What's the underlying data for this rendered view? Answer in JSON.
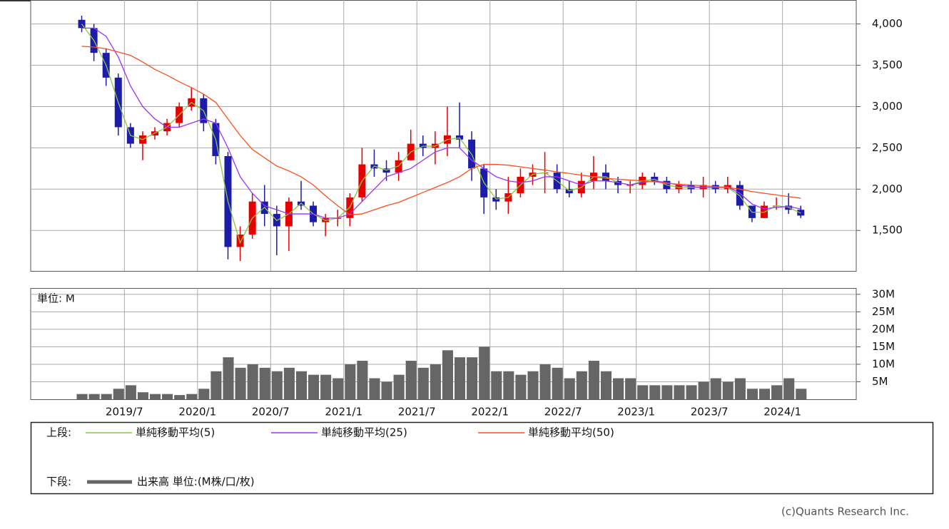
{
  "chart_data": [
    {
      "type": "candlestick",
      "legend_label": "上段:",
      "x": [
        "2019/3",
        "2019/4",
        "2019/5",
        "2019/6",
        "2019/7",
        "2019/8",
        "2019/9",
        "2019/10",
        "2019/11",
        "2019/12",
        "2020/1",
        "2020/2",
        "2020/3",
        "2020/4",
        "2020/5",
        "2020/6",
        "2020/7",
        "2020/8",
        "2020/9",
        "2020/10",
        "2020/11",
        "2020/12",
        "2021/1",
        "2021/2",
        "2021/3",
        "2021/4",
        "2021/5",
        "2021/6",
        "2021/7",
        "2021/8",
        "2021/9",
        "2021/10",
        "2021/11",
        "2021/12",
        "2022/1",
        "2022/2",
        "2022/3",
        "2022/4",
        "2022/5",
        "2022/6",
        "2022/7",
        "2022/8",
        "2022/9",
        "2022/10",
        "2022/11",
        "2022/12",
        "2023/1",
        "2023/2",
        "2023/3",
        "2023/4",
        "2023/5",
        "2023/6",
        "2023/7",
        "2023/8",
        "2023/9",
        "2023/10",
        "2023/11",
        "2023/12",
        "2024/1",
        "2024/2"
      ],
      "open": [
        4050,
        3950,
        3650,
        3350,
        2750,
        2550,
        2650,
        2700,
        2800,
        3000,
        3100,
        2800,
        2400,
        1300,
        1450,
        1850,
        1700,
        1550,
        1850,
        1800,
        1600,
        1650,
        1650,
        1900,
        2300,
        2250,
        2200,
        2350,
        2550,
        2500,
        2550,
        2650,
        2600,
        2250,
        1900,
        1850,
        1950,
        2150,
        2200,
        2200,
        2000,
        1950,
        2100,
        2200,
        2100,
        2050,
        2050,
        2150,
        2100,
        2000,
        2050,
        2000,
        2050,
        2000,
        2050,
        1800,
        1650,
        1800,
        1800,
        1750
      ],
      "high": [
        4100,
        4000,
        3700,
        3400,
        2800,
        2700,
        2750,
        2850,
        3050,
        3230,
        3150,
        2850,
        2450,
        1550,
        1950,
        2050,
        1800,
        1900,
        2100,
        1850,
        1700,
        1750,
        1950,
        2500,
        2480,
        2350,
        2450,
        2720,
        2650,
        2700,
        3000,
        3050,
        2700,
        2300,
        2000,
        2150,
        2250,
        2300,
        2450,
        2300,
        2100,
        2200,
        2400,
        2300,
        2150,
        2100,
        2200,
        2200,
        2150,
        2100,
        2100,
        2150,
        2100,
        2150,
        2100,
        1800,
        1850,
        1900,
        1950,
        1800
      ],
      "low": [
        3900,
        3550,
        3250,
        2650,
        2500,
        2350,
        2600,
        2650,
        2750,
        2950,
        2700,
        2300,
        1150,
        1130,
        1400,
        1550,
        1200,
        1250,
        1750,
        1550,
        1430,
        1550,
        1550,
        1850,
        2150,
        2100,
        2100,
        2350,
        2400,
        2300,
        2400,
        2500,
        2100,
        1700,
        1750,
        1700,
        1900,
        2050,
        1950,
        1950,
        1900,
        1900,
        2000,
        2000,
        1950,
        1950,
        2000,
        2050,
        1950,
        1950,
        1950,
        1900,
        1950,
        1950,
        1750,
        1600,
        1650,
        1750,
        1700,
        1650
      ],
      "close": [
        3950,
        3650,
        3350,
        2750,
        2550,
        2650,
        2700,
        2800,
        3000,
        3100,
        2800,
        2400,
        1300,
        1450,
        1850,
        1700,
        1550,
        1850,
        1800,
        1600,
        1650,
        1650,
        1900,
        2300,
        2250,
        2200,
        2350,
        2550,
        2500,
        2550,
        2650,
        2600,
        2250,
        1900,
        1850,
        1950,
        2150,
        2200,
        2200,
        2000,
        1950,
        2100,
        2200,
        2100,
        2050,
        2050,
        2150,
        2100,
        2000,
        2050,
        2000,
        2050,
        2000,
        2050,
        1800,
        1650,
        1800,
        1800,
        1750,
        1680
      ],
      "up_color": "#e60000",
      "down_color": "#1c1ca8",
      "series": [
        {
          "name": "単純移動平均(5)",
          "color": "#8cc63f",
          "values": [
            4000,
            3800,
            3500,
            3050,
            2650,
            2600,
            2680,
            2750,
            2900,
            3050,
            2950,
            2600,
            1850,
            1350,
            1650,
            1780,
            1620,
            1700,
            1830,
            1700,
            1620,
            1650,
            1780,
            2100,
            2280,
            2230,
            2280,
            2450,
            2520,
            2520,
            2600,
            2620,
            2420,
            2080,
            1880,
            1900,
            2050,
            2180,
            2200,
            2100,
            1980,
            2020,
            2150,
            2150,
            2080,
            2050,
            2100,
            2120,
            2050,
            2020,
            2020,
            2020,
            2020,
            2020,
            1920,
            1720,
            1720,
            1800,
            1780,
            1710
          ]
        },
        {
          "name": "単純移動平均(25)",
          "color": "#9933ff",
          "values": [
            3950,
            3950,
            3850,
            3600,
            3250,
            3000,
            2850,
            2750,
            2750,
            2800,
            2850,
            2800,
            2500,
            2150,
            1950,
            1800,
            1750,
            1700,
            1700,
            1700,
            1650,
            1650,
            1700,
            1850,
            2000,
            2150,
            2200,
            2250,
            2350,
            2450,
            2500,
            2500,
            2350,
            2250,
            2150,
            2100,
            2080,
            2100,
            2150,
            2150,
            2100,
            2050,
            2100,
            2100,
            2080,
            2050,
            2080,
            2100,
            2080,
            2050,
            2030,
            2020,
            2020,
            2030,
            1950,
            1820,
            1760,
            1780,
            1790,
            1760
          ]
        },
        {
          "name": "単純移動平均(50)",
          "color": "#ff4d1a",
          "values": [
            3730,
            3720,
            3700,
            3660,
            3620,
            3540,
            3450,
            3380,
            3300,
            3230,
            3150,
            3050,
            2850,
            2650,
            2480,
            2380,
            2280,
            2220,
            2150,
            2050,
            1920,
            1800,
            1690,
            1700,
            1750,
            1800,
            1840,
            1900,
            1960,
            2020,
            2080,
            2150,
            2250,
            2300,
            2300,
            2290,
            2270,
            2250,
            2230,
            2210,
            2190,
            2170,
            2150,
            2130,
            2120,
            2110,
            2100,
            2090,
            2070,
            2060,
            2050,
            2040,
            2030,
            2020,
            2000,
            1970,
            1950,
            1930,
            1910,
            1890
          ]
        }
      ],
      "ylim": [
        1010,
        4290
      ],
      "yticks": [
        {
          "value": 1500,
          "label": "1,500"
        },
        {
          "value": 2000,
          "label": "2,000"
        },
        {
          "value": 2500,
          "label": "2,500"
        },
        {
          "value": 3000,
          "label": "3,000"
        },
        {
          "value": 3500,
          "label": "3,500"
        },
        {
          "value": 4000,
          "label": "4,000"
        }
      ],
      "grid": true
    },
    {
      "type": "bar",
      "legend_label": "下段:",
      "unit_label": "単位: M",
      "x": [
        "2019/3",
        "2019/4",
        "2019/5",
        "2019/6",
        "2019/7",
        "2019/8",
        "2019/9",
        "2019/10",
        "2019/11",
        "2019/12",
        "2020/1",
        "2020/2",
        "2020/3",
        "2020/4",
        "2020/5",
        "2020/6",
        "2020/7",
        "2020/8",
        "2020/9",
        "2020/10",
        "2020/11",
        "2020/12",
        "2021/1",
        "2021/2",
        "2021/3",
        "2021/4",
        "2021/5",
        "2021/6",
        "2021/7",
        "2021/8",
        "2021/9",
        "2021/10",
        "2021/11",
        "2021/12",
        "2022/1",
        "2022/2",
        "2022/3",
        "2022/4",
        "2022/5",
        "2022/6",
        "2022/7",
        "2022/8",
        "2022/9",
        "2022/10",
        "2022/11",
        "2022/12",
        "2023/1",
        "2023/2",
        "2023/3",
        "2023/4",
        "2023/5",
        "2023/6",
        "2023/7",
        "2023/8",
        "2023/9",
        "2023/10",
        "2023/11",
        "2023/12",
        "2024/1",
        "2024/2"
      ],
      "series": [
        {
          "name": "出来高 単位:(M株/口/枚)",
          "color": "#666666",
          "values": [
            1.5,
            1.5,
            1.5,
            3,
            4,
            2,
            1.5,
            1.5,
            1.2,
            1.5,
            3,
            8,
            12,
            9,
            10,
            9,
            8,
            9,
            8,
            7,
            7,
            6,
            10,
            11,
            6,
            5,
            7,
            11,
            9,
            10,
            14,
            12,
            12,
            15,
            8,
            8,
            7,
            8,
            10,
            9,
            6,
            8,
            11,
            8,
            6,
            6,
            4,
            4,
            4,
            4,
            4,
            5,
            6,
            5,
            6,
            3,
            3,
            4,
            6,
            3
          ]
        }
      ],
      "ylim": [
        0,
        31.8
      ],
      "yticks": [
        {
          "value": 5,
          "label": "5M"
        },
        {
          "value": 10,
          "label": "10M"
        },
        {
          "value": 15,
          "label": "15M"
        },
        {
          "value": 20,
          "label": "20M"
        },
        {
          "value": 25,
          "label": "25M"
        },
        {
          "value": 30,
          "label": "30M"
        }
      ],
      "xticks": [
        "2019/7",
        "2020/1",
        "2020/7",
        "2021/1",
        "2021/7",
        "2022/1",
        "2022/7",
        "2023/1",
        "2023/7",
        "2024/1"
      ],
      "grid": true
    }
  ],
  "footer": "(c)Quants Research Inc."
}
